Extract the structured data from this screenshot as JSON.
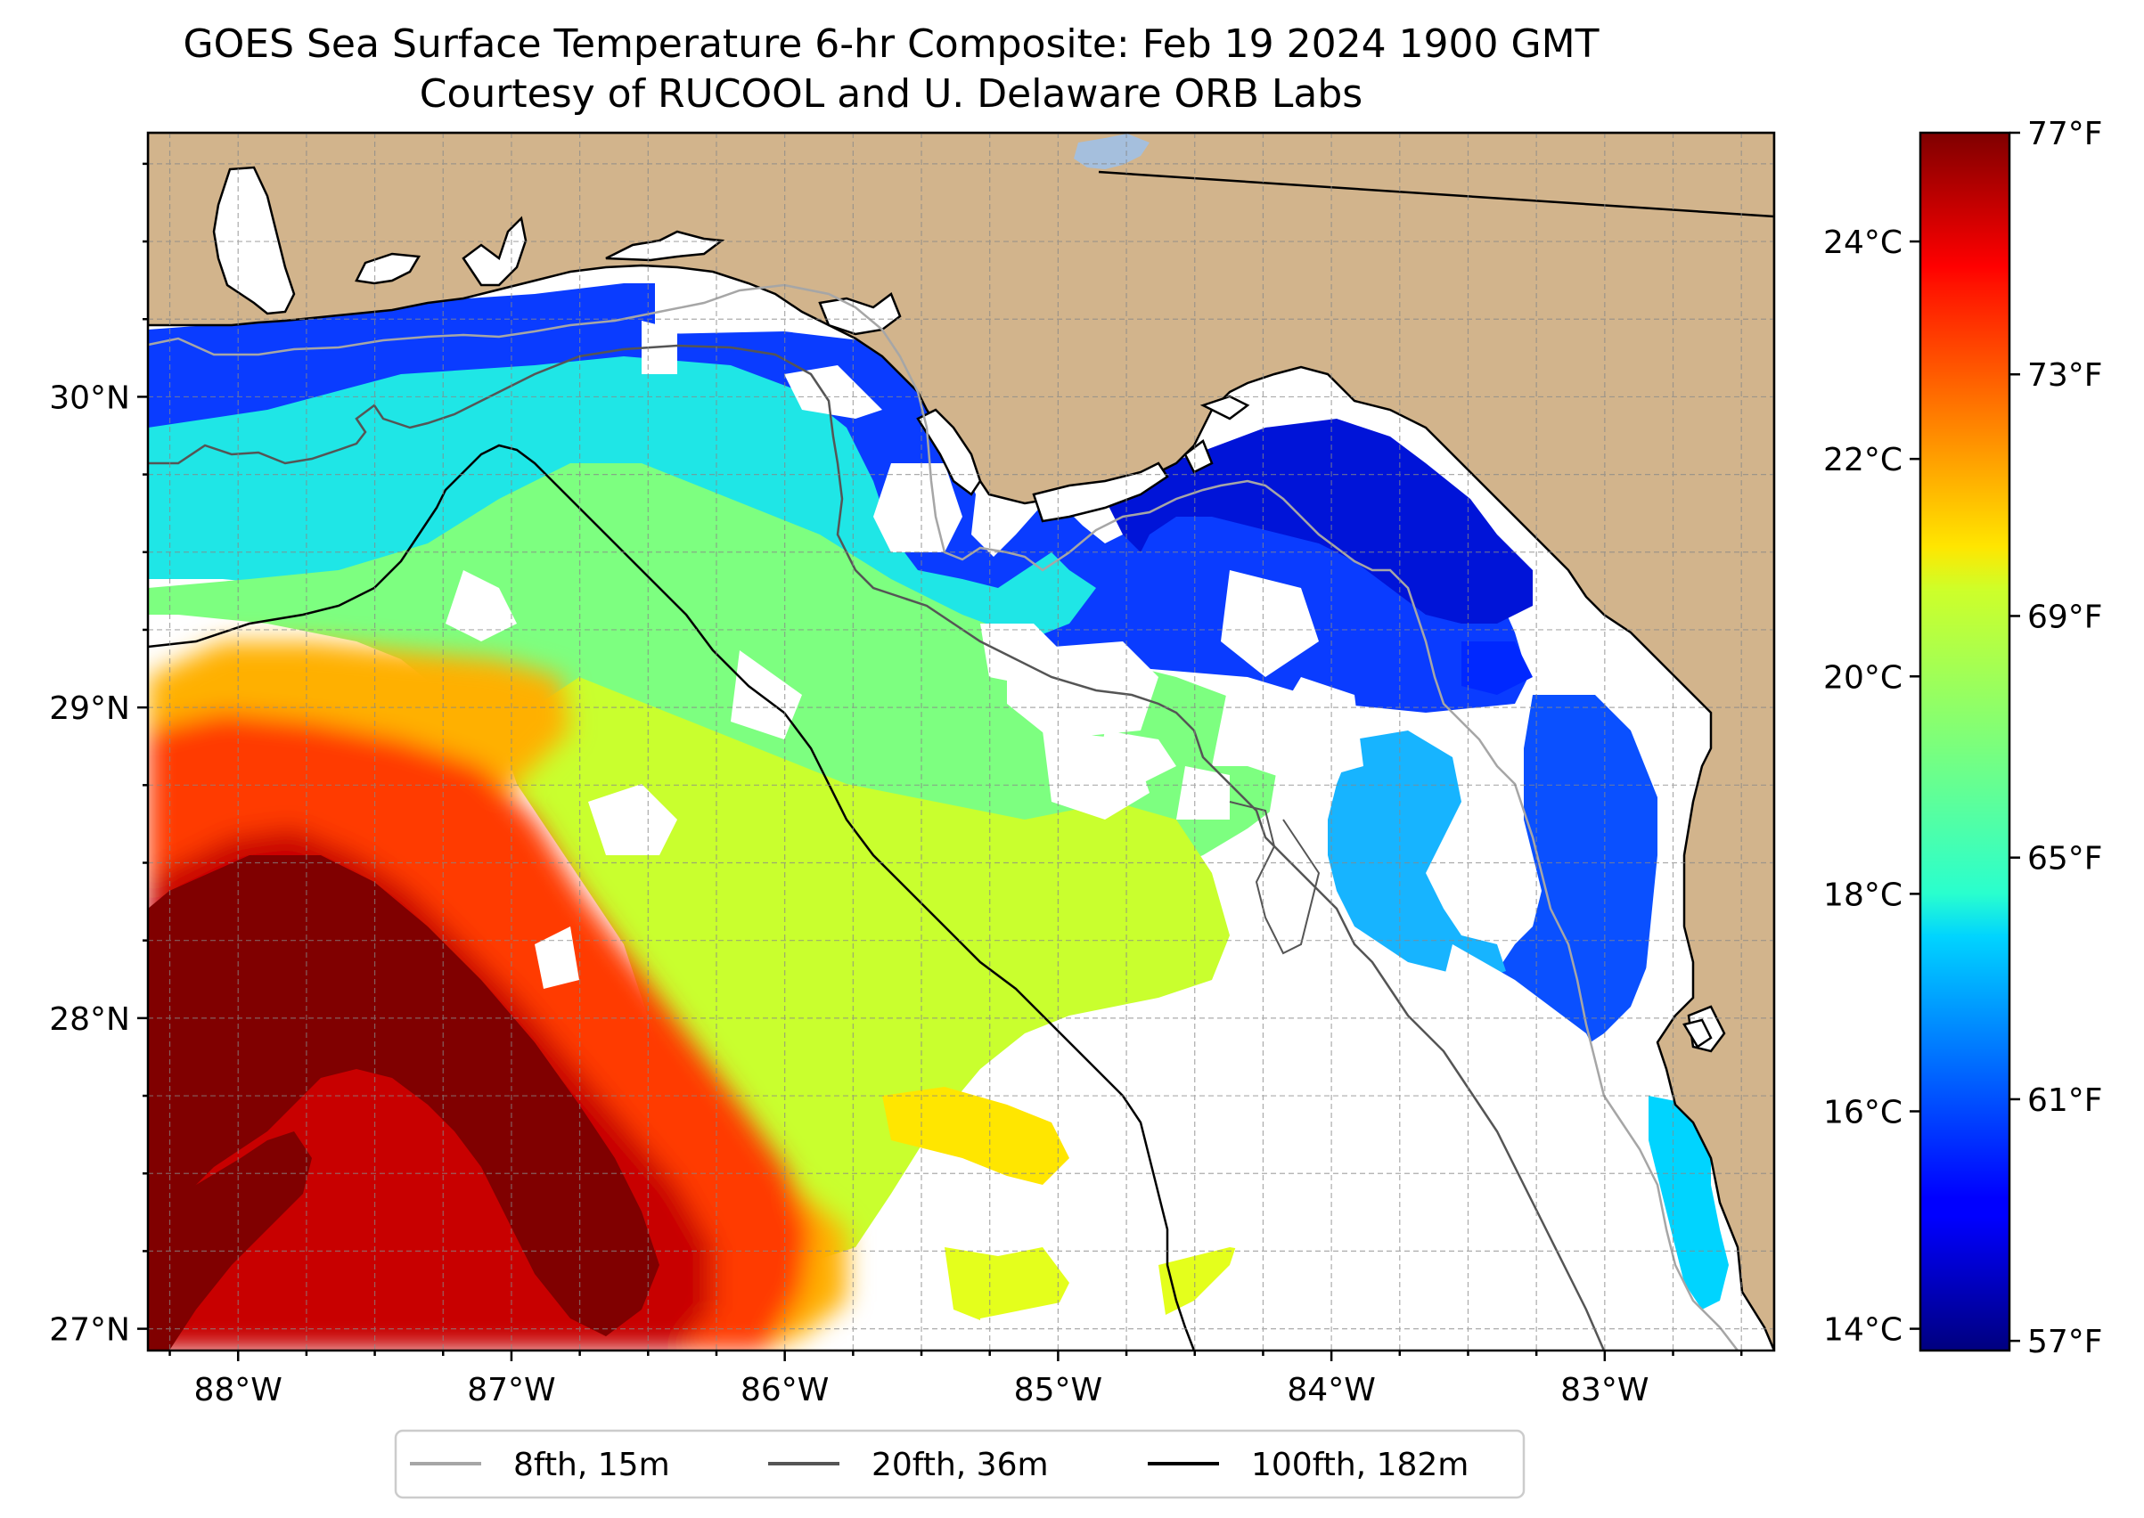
{
  "title": {
    "line1": "GOES Sea Surface Temperature 6-hr Composite: Feb 19 2024 1900 GMT",
    "line2": "Courtesy of RUCOOL and U. Delaware ORB Labs"
  },
  "map": {
    "extent": {
      "lon": [
        -88.33,
        -82.38
      ],
      "lat": [
        26.93,
        30.85
      ]
    },
    "lat_ticks": [
      {
        "value": 27,
        "label": "27°N"
      },
      {
        "value": 28,
        "label": "28°N"
      },
      {
        "value": 29,
        "label": "29°N"
      },
      {
        "value": 30,
        "label": "30°N"
      }
    ],
    "lon_ticks": [
      {
        "value": -88,
        "label": "88°W"
      },
      {
        "value": -87,
        "label": "87°W"
      },
      {
        "value": -86,
        "label": "86°W"
      },
      {
        "value": -85,
        "label": "85°W"
      },
      {
        "value": -84,
        "label": "84°W"
      },
      {
        "value": -83,
        "label": "83°W"
      }
    ],
    "gridlines": "dashed",
    "land_color": "#d2b48c",
    "no_data_color": "#ffffff"
  },
  "colorbar": {
    "colormap": "jet",
    "celsius_range": [
      13.8,
      25.0
    ],
    "celsius_ticks": [
      {
        "value": 14,
        "label": "14°C"
      },
      {
        "value": 16,
        "label": "16°C"
      },
      {
        "value": 18,
        "label": "18°C"
      },
      {
        "value": 20,
        "label": "20°C"
      },
      {
        "value": 22,
        "label": "22°C"
      },
      {
        "value": 24,
        "label": "24°C"
      }
    ],
    "fahrenheit_ticks": [
      {
        "value": 57,
        "label": "57°F"
      },
      {
        "value": 61,
        "label": "61°F"
      },
      {
        "value": 65,
        "label": "65°F"
      },
      {
        "value": 69,
        "label": "69°F"
      },
      {
        "value": 73,
        "label": "73°F"
      },
      {
        "value": 77,
        "label": "77°F"
      }
    ]
  },
  "legend": {
    "placement": "bottom-center",
    "items": [
      {
        "label": "8fth, 15m",
        "color": "#a6a6a6"
      },
      {
        "label": "20fth, 36m",
        "color": "#555555"
      },
      {
        "label": "100fth, 182m",
        "color": "#000000"
      }
    ]
  }
}
